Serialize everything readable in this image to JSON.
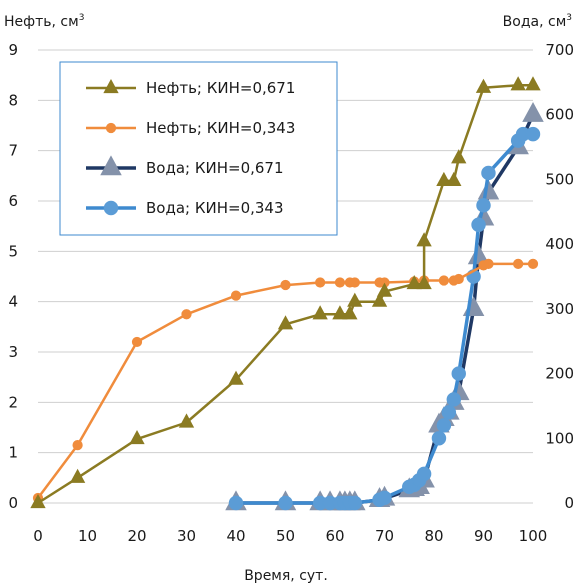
{
  "chart_data": {
    "type": "line",
    "xlabel": "Время, сут.",
    "ylabel_left": "Нефть, см",
    "ylabel_right": "Вода, см",
    "ylabel_superscript": "3",
    "xlim": [
      0,
      100
    ],
    "ylim_left": [
      0,
      9
    ],
    "ylim_right": [
      0,
      700
    ],
    "x_ticks": [
      0,
      10,
      20,
      30,
      40,
      50,
      60,
      70,
      80,
      90,
      100
    ],
    "y_left_ticks": [
      0,
      1,
      2,
      3,
      4,
      5,
      6,
      7,
      8,
      9
    ],
    "y_right_ticks": [
      0,
      100,
      200,
      300,
      400,
      500,
      600,
      700
    ],
    "grid": "horizontal",
    "legend_position": "top-left",
    "series": [
      {
        "name": "Нефть; КИН=0,671",
        "axis": "left",
        "color": "#8B7B22",
        "marker": "triangle",
        "x": [
          0,
          8,
          20,
          30,
          40,
          50,
          57,
          61,
          63,
          64,
          69,
          70,
          76,
          78,
          78,
          82,
          84,
          85,
          90,
          97,
          100
        ],
        "y": [
          0,
          0.5,
          1.27,
          1.6,
          2.45,
          3.55,
          3.75,
          3.75,
          3.75,
          4.0,
          4.0,
          4.2,
          4.35,
          4.35,
          5.2,
          6.4,
          6.4,
          6.85,
          8.25,
          8.3,
          8.3
        ]
      },
      {
        "name": "Нефть; КИН=0,343",
        "axis": "left",
        "color": "#F08C3C",
        "marker": "circle",
        "x": [
          0,
          8,
          20,
          30,
          40,
          50,
          57,
          61,
          63,
          64,
          69,
          70,
          76,
          78,
          82,
          84,
          85,
          90,
          91,
          97,
          100
        ],
        "y": [
          0.1,
          1.15,
          3.2,
          3.75,
          4.12,
          4.33,
          4.38,
          4.38,
          4.38,
          4.38,
          4.38,
          4.38,
          4.4,
          4.42,
          4.42,
          4.42,
          4.45,
          4.72,
          4.75,
          4.75,
          4.75
        ]
      },
      {
        "name": "Вода;   КИН=0,671",
        "axis": "right",
        "color": "#1F3864",
        "marker": "triangle",
        "x": [
          40,
          50,
          57,
          59,
          61,
          62,
          63,
          64,
          69,
          70,
          75,
          76,
          77,
          78,
          81,
          82,
          83,
          84,
          85,
          88,
          89,
          90,
          91,
          97,
          100
        ],
        "y": [
          0,
          0,
          0,
          0,
          0,
          0,
          0,
          0,
          5,
          7,
          20,
          22,
          25,
          35,
          120,
          130,
          140,
          155,
          170,
          300,
          380,
          440,
          480,
          550,
          600
        ]
      },
      {
        "name": "Вода;   КИН=0,343",
        "axis": "right",
        "color": "#3E8ACF",
        "marker": "circle",
        "x": [
          40,
          50,
          57,
          59,
          61,
          62,
          63,
          64,
          69,
          70,
          75,
          76,
          77,
          78,
          81,
          82,
          83,
          84,
          85,
          88,
          89,
          90,
          91,
          97,
          98,
          100
        ],
        "y": [
          0,
          0,
          0,
          0,
          0,
          0,
          0,
          0,
          5,
          8,
          25,
          28,
          35,
          45,
          100,
          120,
          140,
          160,
          200,
          350,
          430,
          460,
          510,
          560,
          570,
          570
        ]
      }
    ]
  }
}
